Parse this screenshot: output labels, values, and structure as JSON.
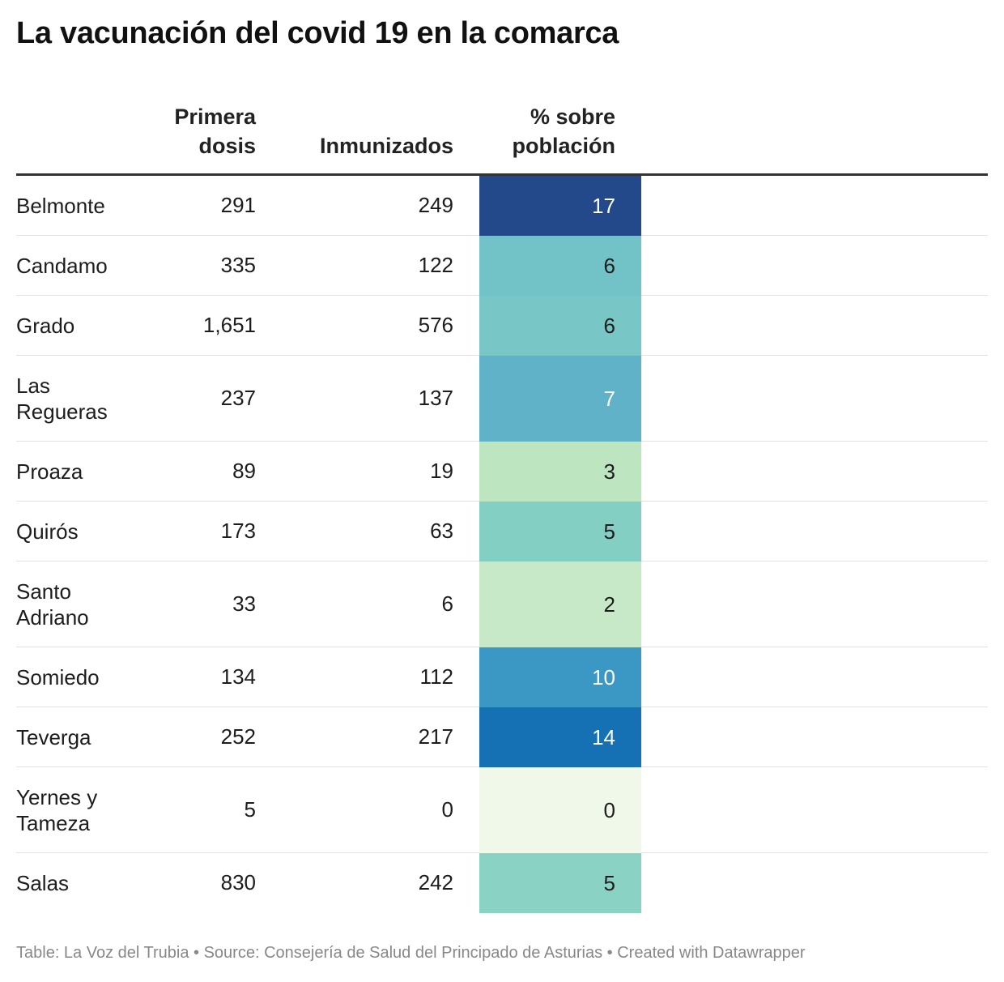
{
  "title": "La vacunación del covid 19 en la comarca",
  "headers": {
    "primera_l1": "Primera",
    "primera_l2": "dosis",
    "inmunizados": "Inmunizados",
    "pct_l1": "% sobre",
    "pct_l2": "población"
  },
  "footer": "Table: La Voz del Trubia • Source: Consejería de Salud del Principado de Asturias • Created with Datawrapper",
  "chart_data": {
    "type": "table",
    "title": "La vacunación del covid 19 en la comarca",
    "columns": [
      "",
      "Primera dosis",
      "Inmunizados",
      "% sobre población"
    ],
    "rows": [
      {
        "name": "Belmonte",
        "primera": "291",
        "inmunizados": "249",
        "pct": 17,
        "color": "#24498b",
        "text_color": "#ffffff"
      },
      {
        "name": "Candamo",
        "primera": "335",
        "inmunizados": "122",
        "pct": 6,
        "color": "#72c3c7",
        "text_color": "#1d1d1d"
      },
      {
        "name": "Grado",
        "primera": "1,651",
        "inmunizados": "576",
        "pct": 6,
        "color": "#79c6c6",
        "text_color": "#1d1d1d"
      },
      {
        "name": "Las Regueras",
        "primera": "237",
        "inmunizados": "137",
        "pct": 7,
        "color": "#5fb2c8",
        "text_color": "#ffffff"
      },
      {
        "name": "Proaza",
        "primera": "89",
        "inmunizados": "19",
        "pct": 3,
        "color": "#bce5c0",
        "text_color": "#1d1d1d"
      },
      {
        "name": "Quirós",
        "primera": "173",
        "inmunizados": "63",
        "pct": 5,
        "color": "#84cfc4",
        "text_color": "#1d1d1d"
      },
      {
        "name": "Santo Adriano",
        "primera": "33",
        "inmunizados": "6",
        "pct": 2,
        "color": "#c8e9c8",
        "text_color": "#1d1d1d"
      },
      {
        "name": "Somiedo",
        "primera": "134",
        "inmunizados": "112",
        "pct": 10,
        "color": "#3b97c3",
        "text_color": "#ffffff"
      },
      {
        "name": "Teverga",
        "primera": "252",
        "inmunizados": "217",
        "pct": 14,
        "color": "#1571b3",
        "text_color": "#ffffff"
      },
      {
        "name": "Yernes y Tameza",
        "primera": "5",
        "inmunizados": "0",
        "pct": 0,
        "color": "#f0f8ea",
        "text_color": "#1d1d1d"
      },
      {
        "name": "Salas",
        "primera": "830",
        "inmunizados": "242",
        "pct": 5,
        "color": "#8ad2c4",
        "text_color": "#1d1d1d"
      }
    ]
  }
}
